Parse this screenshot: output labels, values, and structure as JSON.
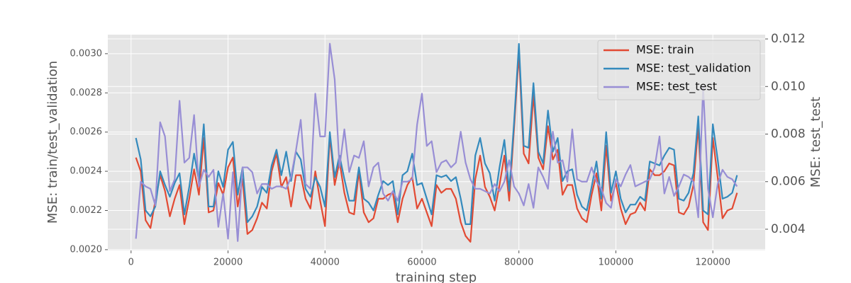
{
  "chart_data": {
    "type": "line",
    "xlabel": "training step",
    "ylabel": "MSE: train/test_validation",
    "y2label": "MSE: test_test",
    "legend": "upper right",
    "grid": true,
    "xlim": [
      -4800,
      130800
    ],
    "xticks": [
      0,
      20000,
      40000,
      60000,
      80000,
      100000,
      120000
    ],
    "ylim": [
      0.001996,
      0.003097
    ],
    "yticks": [
      {
        "value": 0.002,
        "label": "0.0020"
      },
      {
        "value": 0.0022,
        "label": "0.0022"
      },
      {
        "value": 0.0024,
        "label": "0.0024"
      },
      {
        "value": 0.0026,
        "label": "0.0026"
      },
      {
        "value": 0.0028,
        "label": "0.0028"
      },
      {
        "value": 0.003,
        "label": "0.0030"
      }
    ],
    "y2lim": [
      0.003107,
      0.01218
    ],
    "y2ticks": [
      0.004,
      0.006,
      0.008,
      {
        "value": 0.01,
        "label": "0.010"
      },
      0.012
    ],
    "x": [
      1000,
      2000,
      3000,
      4000,
      5000,
      6000,
      7000,
      8000,
      9000,
      10000,
      11000,
      12000,
      13000,
      14000,
      15000,
      16000,
      17000,
      18000,
      19000,
      20000,
      21000,
      22000,
      23000,
      24000,
      25000,
      26000,
      27000,
      28000,
      29000,
      30000,
      31000,
      32000,
      33000,
      34000,
      35000,
      36000,
      37000,
      38000,
      39000,
      40000,
      41000,
      42000,
      43000,
      44000,
      45000,
      46000,
      47000,
      48000,
      49000,
      50000,
      51000,
      52000,
      53000,
      54000,
      55000,
      56000,
      57000,
      58000,
      59000,
      60000,
      61000,
      62000,
      63000,
      64000,
      65000,
      66000,
      67000,
      68000,
      69000,
      70000,
      71000,
      72000,
      73000,
      74000,
      75000,
      76000,
      77000,
      78000,
      79000,
      80000,
      81000,
      82000,
      83000,
      84000,
      85000,
      86000,
      87000,
      88000,
      89000,
      90000,
      91000,
      92000,
      93000,
      94000,
      95000,
      96000,
      97000,
      98000,
      99000,
      100000,
      101000,
      102000,
      103000,
      104000,
      105000,
      106000,
      107000,
      108000,
      109000,
      110000,
      111000,
      112000,
      113000,
      114000,
      115000,
      116000,
      117000,
      118000,
      119000,
      120000,
      121000,
      122000,
      123000,
      124000,
      125000
    ],
    "series": [
      {
        "name": "MSE: train",
        "color": "#E24A33",
        "axis": "y",
        "values": [
          0.00247,
          0.0024,
          0.00215,
          0.00211,
          0.00225,
          0.00238,
          0.0023,
          0.00217,
          0.00226,
          0.00233,
          0.00213,
          0.00226,
          0.00241,
          0.00228,
          0.00257,
          0.00219,
          0.0022,
          0.00234,
          0.00228,
          0.00242,
          0.00247,
          0.00222,
          0.00236,
          0.00208,
          0.0021,
          0.00216,
          0.00224,
          0.00221,
          0.0024,
          0.00249,
          0.00232,
          0.00237,
          0.00222,
          0.00238,
          0.00238,
          0.00226,
          0.00221,
          0.0024,
          0.00225,
          0.00212,
          0.00258,
          0.00233,
          0.00245,
          0.00229,
          0.00219,
          0.00218,
          0.0024,
          0.00219,
          0.00214,
          0.00216,
          0.00226,
          0.00226,
          0.00228,
          0.00229,
          0.00214,
          0.00226,
          0.00233,
          0.00237,
          0.00221,
          0.00226,
          0.00219,
          0.00212,
          0.00233,
          0.00229,
          0.00231,
          0.00231,
          0.00226,
          0.00214,
          0.00207,
          0.00204,
          0.00236,
          0.00248,
          0.00232,
          0.00227,
          0.0022,
          0.00233,
          0.00248,
          0.00225,
          0.00262,
          0.003,
          0.00249,
          0.00244,
          0.00279,
          0.00247,
          0.00241,
          0.00263,
          0.00246,
          0.00251,
          0.00228,
          0.00233,
          0.00233,
          0.00221,
          0.00216,
          0.00214,
          0.00228,
          0.00239,
          0.0022,
          0.00253,
          0.00225,
          0.00234,
          0.00221,
          0.00213,
          0.00218,
          0.00219,
          0.00224,
          0.0022,
          0.00241,
          0.00238,
          0.00238,
          0.0024,
          0.00244,
          0.00243,
          0.00219,
          0.00218,
          0.00222,
          0.00233,
          0.00263,
          0.00214,
          0.0021,
          0.00257,
          0.00237,
          0.00216,
          0.0022,
          0.00221,
          0.00229
        ]
      },
      {
        "name": "MSE: test_validation",
        "color": "#348ABD",
        "axis": "y",
        "values": [
          0.00257,
          0.00246,
          0.0022,
          0.00217,
          0.00222,
          0.0024,
          0.00233,
          0.00227,
          0.00234,
          0.00239,
          0.00218,
          0.00232,
          0.00249,
          0.00235,
          0.00264,
          0.00222,
          0.00222,
          0.0024,
          0.00232,
          0.00251,
          0.00255,
          0.00228,
          0.00242,
          0.00214,
          0.00217,
          0.00222,
          0.00232,
          0.00229,
          0.00243,
          0.00251,
          0.00238,
          0.0025,
          0.00235,
          0.0025,
          0.00246,
          0.00231,
          0.00227,
          0.00237,
          0.00232,
          0.00222,
          0.0026,
          0.00237,
          0.00248,
          0.00236,
          0.00225,
          0.00225,
          0.00242,
          0.00226,
          0.00224,
          0.0022,
          0.00228,
          0.00235,
          0.00233,
          0.00235,
          0.00218,
          0.00238,
          0.0024,
          0.00249,
          0.00233,
          0.00234,
          0.00226,
          0.00218,
          0.00238,
          0.00237,
          0.00238,
          0.00235,
          0.00237,
          0.00226,
          0.00213,
          0.00213,
          0.00248,
          0.00257,
          0.00244,
          0.00239,
          0.00225,
          0.00242,
          0.00256,
          0.0023,
          0.00265,
          0.00305,
          0.00253,
          0.00252,
          0.00285,
          0.0025,
          0.00244,
          0.00271,
          0.0025,
          0.00257,
          0.00235,
          0.0024,
          0.00241,
          0.00228,
          0.00222,
          0.0022,
          0.00232,
          0.00245,
          0.00226,
          0.0026,
          0.00229,
          0.0024,
          0.00226,
          0.00219,
          0.00223,
          0.00223,
          0.00227,
          0.00225,
          0.00245,
          0.00244,
          0.00243,
          0.00248,
          0.00252,
          0.00251,
          0.00226,
          0.00225,
          0.00229,
          0.00239,
          0.00268,
          0.0022,
          0.00218,
          0.00264,
          0.00246,
          0.00226,
          0.00227,
          0.00229,
          0.00238
        ]
      },
      {
        "name": "MSE: test_test",
        "color": "#988ED5",
        "axis": "y2",
        "values": [
          0.0036,
          0.006,
          0.0058,
          0.0057,
          0.005,
          0.0085,
          0.0079,
          0.0056,
          0.0061,
          0.0094,
          0.0068,
          0.007,
          0.0088,
          0.0058,
          0.0065,
          0.0062,
          0.0065,
          0.0041,
          0.0055,
          0.0036,
          0.0064,
          0.0035,
          0.0066,
          0.0066,
          0.0064,
          0.0055,
          0.0059,
          0.0059,
          0.0057,
          0.0058,
          0.0058,
          0.0057,
          0.0062,
          0.0073,
          0.0086,
          0.0059,
          0.0057,
          0.0097,
          0.0079,
          0.0079,
          0.0118,
          0.0103,
          0.0066,
          0.0082,
          0.0064,
          0.0071,
          0.007,
          0.0077,
          0.0058,
          0.0066,
          0.0068,
          0.0055,
          0.0052,
          0.0056,
          0.0052,
          0.006,
          0.006,
          0.0061,
          0.0084,
          0.0097,
          0.0075,
          0.0077,
          0.0064,
          0.0068,
          0.0069,
          0.0066,
          0.0068,
          0.0081,
          0.0068,
          0.0061,
          0.0057,
          0.0057,
          0.0056,
          0.0055,
          0.0059,
          0.0056,
          0.006,
          0.0069,
          0.0058,
          0.0055,
          0.005,
          0.0059,
          0.0049,
          0.0066,
          0.0062,
          0.0057,
          0.0081,
          0.0068,
          0.0069,
          0.006,
          0.0082,
          0.0061,
          0.006,
          0.006,
          0.0066,
          0.006,
          0.0057,
          0.0051,
          0.0049,
          0.0061,
          0.0058,
          0.0063,
          0.0067,
          0.0058,
          0.0059,
          0.006,
          0.0061,
          0.0066,
          0.0079,
          0.0055,
          0.0062,
          0.0054,
          0.0058,
          0.0063,
          0.0062,
          0.006,
          0.0045,
          0.01,
          0.0057,
          0.0045,
          0.0059,
          0.0065,
          0.0062,
          0.0061,
          0.0058
        ]
      }
    ]
  }
}
